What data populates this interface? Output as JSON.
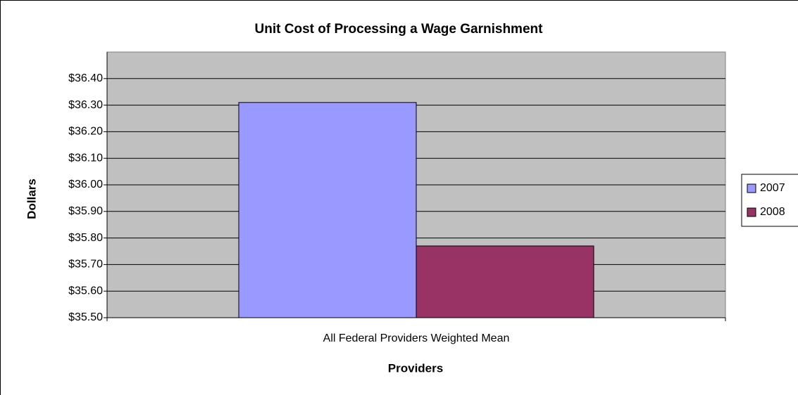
{
  "chart_data": {
    "type": "bar",
    "title": "Unit Cost of Processing a Wage Garnishment",
    "x_label": "Providers",
    "y_label": "Dollars",
    "categories": [
      "All Federal Providers Weighted Mean"
    ],
    "series": [
      {
        "name": "2007",
        "color": "#9999ff",
        "values": [
          36.31
        ]
      },
      {
        "name": "2008",
        "color": "#993366",
        "values": [
          35.77
        ]
      }
    ],
    "ylim": [
      35.5,
      36.5
    ],
    "yticks": [
      {
        "value": 35.5,
        "label": "$35.50"
      },
      {
        "value": 35.6,
        "label": "$35.60"
      },
      {
        "value": 35.7,
        "label": "$35.70"
      },
      {
        "value": 35.8,
        "label": "$35.80"
      },
      {
        "value": 35.9,
        "label": "$35.90"
      },
      {
        "value": 36.0,
        "label": "$36.00"
      },
      {
        "value": 36.1,
        "label": "$36.10"
      },
      {
        "value": 36.2,
        "label": "$36.20"
      },
      {
        "value": 36.3,
        "label": "$36.30"
      },
      {
        "value": 36.4,
        "label": "$36.40"
      }
    ],
    "grid": true,
    "legend": "right",
    "plot_background": "#c0c0c0"
  }
}
